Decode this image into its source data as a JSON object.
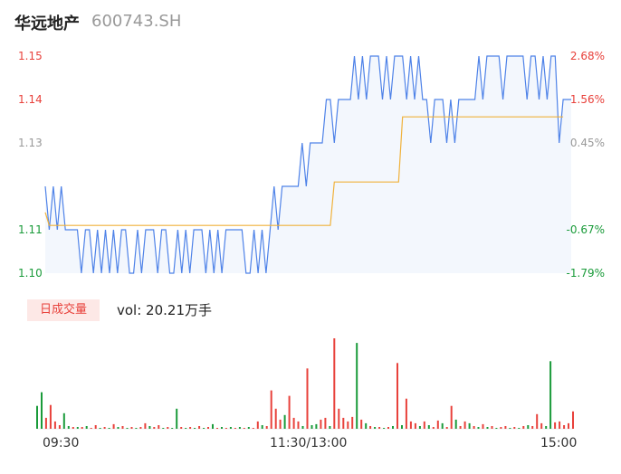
{
  "header": {
    "name": "华远地产",
    "code": "600743.SH"
  },
  "colors": {
    "up": "#e8413b",
    "down": "#1a9b3a",
    "flat": "#999999",
    "price_line": "#4e82e8",
    "avg_line": "#f0b23c"
  },
  "volume_panel": {
    "tag": "日成交量",
    "value_text": "vol: 20.21万手"
  },
  "chart_data": [
    {
      "type": "line",
      "y_ticks": [
        "1.15",
        "1.14",
        "1.13",
        "1.11",
        "1.10"
      ],
      "y_tick_values": [
        1.15,
        1.14,
        1.13,
        1.11,
        1.1
      ],
      "pct_ticks": [
        "2.68%",
        "1.56%",
        "0.45%",
        "-0.67%",
        "-1.79%"
      ],
      "x_ticks": [
        "09:30",
        "11:30/13:00",
        "15:00"
      ],
      "ylim": [
        1.1,
        1.15
      ],
      "series": [
        {
          "values": [
            1.12,
            1.11,
            1.12,
            1.11,
            1.12,
            1.11,
            1.11,
            1.11,
            1.11,
            1.1,
            1.11,
            1.11,
            1.1,
            1.11,
            1.1,
            1.11,
            1.1,
            1.11,
            1.1,
            1.11,
            1.11,
            1.1,
            1.1,
            1.11,
            1.1,
            1.11,
            1.11,
            1.11,
            1.1,
            1.11,
            1.11,
            1.1,
            1.1,
            1.11,
            1.1,
            1.11,
            1.1,
            1.11,
            1.11,
            1.11,
            1.1,
            1.11,
            1.1,
            1.11,
            1.1,
            1.11,
            1.11,
            1.11,
            1.11,
            1.11,
            1.1,
            1.1,
            1.11,
            1.1,
            1.11,
            1.1,
            1.11,
            1.12,
            1.11,
            1.12,
            1.12,
            1.12,
            1.12,
            1.12,
            1.13,
            1.12,
            1.13,
            1.13,
            1.13,
            1.13,
            1.14,
            1.14,
            1.13,
            1.14,
            1.14,
            1.14,
            1.14,
            1.15,
            1.14,
            1.15,
            1.14,
            1.15,
            1.15,
            1.15,
            1.14,
            1.15,
            1.14,
            1.15,
            1.15,
            1.15,
            1.14,
            1.15,
            1.14,
            1.15,
            1.14,
            1.14,
            1.13,
            1.14,
            1.14,
            1.14,
            1.13,
            1.14,
            1.13,
            1.14,
            1.14,
            1.14,
            1.14,
            1.14,
            1.15,
            1.14,
            1.15,
            1.15,
            1.15,
            1.15,
            1.14,
            1.15,
            1.15,
            1.15,
            1.15,
            1.15,
            1.14,
            1.15,
            1.15,
            1.14,
            1.15,
            1.14,
            1.15,
            1.15,
            1.13,
            1.14,
            1.14,
            1.14
          ]
        },
        {
          "values": [
            1.114,
            1.111,
            1.111,
            1.111,
            1.111,
            1.111,
            1.111,
            1.111,
            1.111,
            1.111,
            1.111,
            1.111,
            1.111,
            1.111,
            1.111,
            1.111,
            1.111,
            1.111,
            1.111,
            1.111,
            1.111,
            1.111,
            1.111,
            1.111,
            1.111,
            1.111,
            1.111,
            1.111,
            1.111,
            1.111,
            1.111,
            1.111,
            1.111,
            1.111,
            1.111,
            1.111,
            1.111,
            1.111,
            1.111,
            1.111,
            1.111,
            1.111,
            1.111,
            1.111,
            1.111,
            1.111,
            1.111,
            1.111,
            1.111,
            1.111,
            1.111,
            1.111,
            1.111,
            1.111,
            1.111,
            1.111,
            1.111,
            1.111,
            1.111,
            1.111,
            1.111,
            1.111,
            1.111,
            1.111,
            1.111,
            1.111,
            1.111,
            1.111,
            1.111,
            1.111,
            1.111,
            1.111,
            1.121,
            1.121,
            1.121,
            1.121,
            1.121,
            1.121,
            1.121,
            1.121,
            1.121,
            1.121,
            1.121,
            1.121,
            1.121,
            1.121,
            1.121,
            1.121,
            1.121,
            1.136,
            1.136,
            1.136,
            1.136,
            1.136,
            1.136,
            1.136,
            1.136,
            1.136,
            1.136,
            1.136,
            1.136,
            1.136,
            1.136,
            1.136,
            1.136,
            1.136,
            1.136,
            1.136,
            1.136,
            1.136,
            1.136,
            1.136,
            1.136,
            1.136,
            1.136,
            1.136,
            1.136,
            1.136,
            1.136,
            1.136,
            1.136,
            1.136,
            1.136,
            1.136,
            1.136,
            1.136,
            1.136,
            1.136,
            1.136,
            1.136
          ]
        }
      ]
    },
    {
      "type": "bar",
      "values": [
        {
          "v": 25,
          "c": "down"
        },
        {
          "v": 40,
          "c": "down"
        },
        {
          "v": 12,
          "c": "up"
        },
        {
          "v": 26,
          "c": "up"
        },
        {
          "v": 8,
          "c": "up"
        },
        {
          "v": 4,
          "c": "up"
        },
        {
          "v": 17,
          "c": "down"
        },
        {
          "v": 3,
          "c": "down"
        },
        {
          "v": 2,
          "c": "up"
        },
        {
          "v": 2,
          "c": "down"
        },
        {
          "v": 2,
          "c": "up"
        },
        {
          "v": 3,
          "c": "down"
        },
        {
          "v": 1,
          "c": "up"
        },
        {
          "v": 4,
          "c": "up"
        },
        {
          "v": 1,
          "c": "down"
        },
        {
          "v": 2,
          "c": "up"
        },
        {
          "v": 1,
          "c": "down"
        },
        {
          "v": 5,
          "c": "up"
        },
        {
          "v": 2,
          "c": "down"
        },
        {
          "v": 3,
          "c": "up"
        },
        {
          "v": 1,
          "c": "down"
        },
        {
          "v": 2,
          "c": "up"
        },
        {
          "v": 1,
          "c": "down"
        },
        {
          "v": 2,
          "c": "up"
        },
        {
          "v": 6,
          "c": "up"
        },
        {
          "v": 3,
          "c": "down"
        },
        {
          "v": 2,
          "c": "up"
        },
        {
          "v": 4,
          "c": "up"
        },
        {
          "v": 1,
          "c": "down"
        },
        {
          "v": 2,
          "c": "up"
        },
        {
          "v": 1,
          "c": "down"
        },
        {
          "v": 22,
          "c": "down"
        },
        {
          "v": 2,
          "c": "up"
        },
        {
          "v": 1,
          "c": "down"
        },
        {
          "v": 2,
          "c": "up"
        },
        {
          "v": 1,
          "c": "down"
        },
        {
          "v": 3,
          "c": "up"
        },
        {
          "v": 1,
          "c": "down"
        },
        {
          "v": 2,
          "c": "up"
        },
        {
          "v": 5,
          "c": "down"
        },
        {
          "v": 1,
          "c": "up"
        },
        {
          "v": 2,
          "c": "down"
        },
        {
          "v": 1,
          "c": "up"
        },
        {
          "v": 2,
          "c": "down"
        },
        {
          "v": 1,
          "c": "up"
        },
        {
          "v": 2,
          "c": "down"
        },
        {
          "v": 1,
          "c": "up"
        },
        {
          "v": 2,
          "c": "down"
        },
        {
          "v": 1,
          "c": "up"
        },
        {
          "v": 8,
          "c": "up"
        },
        {
          "v": 4,
          "c": "down"
        },
        {
          "v": 3,
          "c": "up"
        },
        {
          "v": 42,
          "c": "up"
        },
        {
          "v": 22,
          "c": "up"
        },
        {
          "v": 10,
          "c": "up"
        },
        {
          "v": 15,
          "c": "down"
        },
        {
          "v": 36,
          "c": "up"
        },
        {
          "v": 12,
          "c": "up"
        },
        {
          "v": 8,
          "c": "up"
        },
        {
          "v": 3,
          "c": "down"
        },
        {
          "v": 66,
          "c": "up"
        },
        {
          "v": 4,
          "c": "down"
        },
        {
          "v": 5,
          "c": "down"
        },
        {
          "v": 10,
          "c": "up"
        },
        {
          "v": 12,
          "c": "up"
        },
        {
          "v": 3,
          "c": "down"
        },
        {
          "v": 99,
          "c": "up"
        },
        {
          "v": 22,
          "c": "up"
        },
        {
          "v": 12,
          "c": "up"
        },
        {
          "v": 8,
          "c": "up"
        },
        {
          "v": 13,
          "c": "up"
        },
        {
          "v": 94,
          "c": "down"
        },
        {
          "v": 10,
          "c": "up"
        },
        {
          "v": 6,
          "c": "down"
        },
        {
          "v": 3,
          "c": "up"
        },
        {
          "v": 2,
          "c": "down"
        },
        {
          "v": 2,
          "c": "up"
        },
        {
          "v": 1,
          "c": "down"
        },
        {
          "v": 2,
          "c": "up"
        },
        {
          "v": 3,
          "c": "down"
        },
        {
          "v": 72,
          "c": "up"
        },
        {
          "v": 4,
          "c": "down"
        },
        {
          "v": 33,
          "c": "up"
        },
        {
          "v": 8,
          "c": "up"
        },
        {
          "v": 6,
          "c": "up"
        },
        {
          "v": 3,
          "c": "down"
        },
        {
          "v": 8,
          "c": "up"
        },
        {
          "v": 4,
          "c": "down"
        },
        {
          "v": 2,
          "c": "up"
        },
        {
          "v": 9,
          "c": "up"
        },
        {
          "v": 6,
          "c": "down"
        },
        {
          "v": 2,
          "c": "up"
        },
        {
          "v": 25,
          "c": "up"
        },
        {
          "v": 10,
          "c": "down"
        },
        {
          "v": 3,
          "c": "up"
        },
        {
          "v": 8,
          "c": "up"
        },
        {
          "v": 6,
          "c": "down"
        },
        {
          "v": 3,
          "c": "up"
        },
        {
          "v": 2,
          "c": "down"
        },
        {
          "v": 5,
          "c": "up"
        },
        {
          "v": 2,
          "c": "down"
        },
        {
          "v": 3,
          "c": "up"
        },
        {
          "v": 1,
          "c": "down"
        },
        {
          "v": 2,
          "c": "up"
        },
        {
          "v": 3,
          "c": "up"
        },
        {
          "v": 1,
          "c": "down"
        },
        {
          "v": 2,
          "c": "up"
        },
        {
          "v": 1,
          "c": "down"
        },
        {
          "v": 3,
          "c": "up"
        },
        {
          "v": 4,
          "c": "down"
        },
        {
          "v": 3,
          "c": "up"
        },
        {
          "v": 16,
          "c": "up"
        },
        {
          "v": 6,
          "c": "up"
        },
        {
          "v": 3,
          "c": "down"
        },
        {
          "v": 74,
          "c": "down"
        },
        {
          "v": 7,
          "c": "up"
        },
        {
          "v": 8,
          "c": "up"
        },
        {
          "v": 4,
          "c": "up"
        },
        {
          "v": 6,
          "c": "up"
        },
        {
          "v": 19,
          "c": "up"
        }
      ]
    }
  ]
}
